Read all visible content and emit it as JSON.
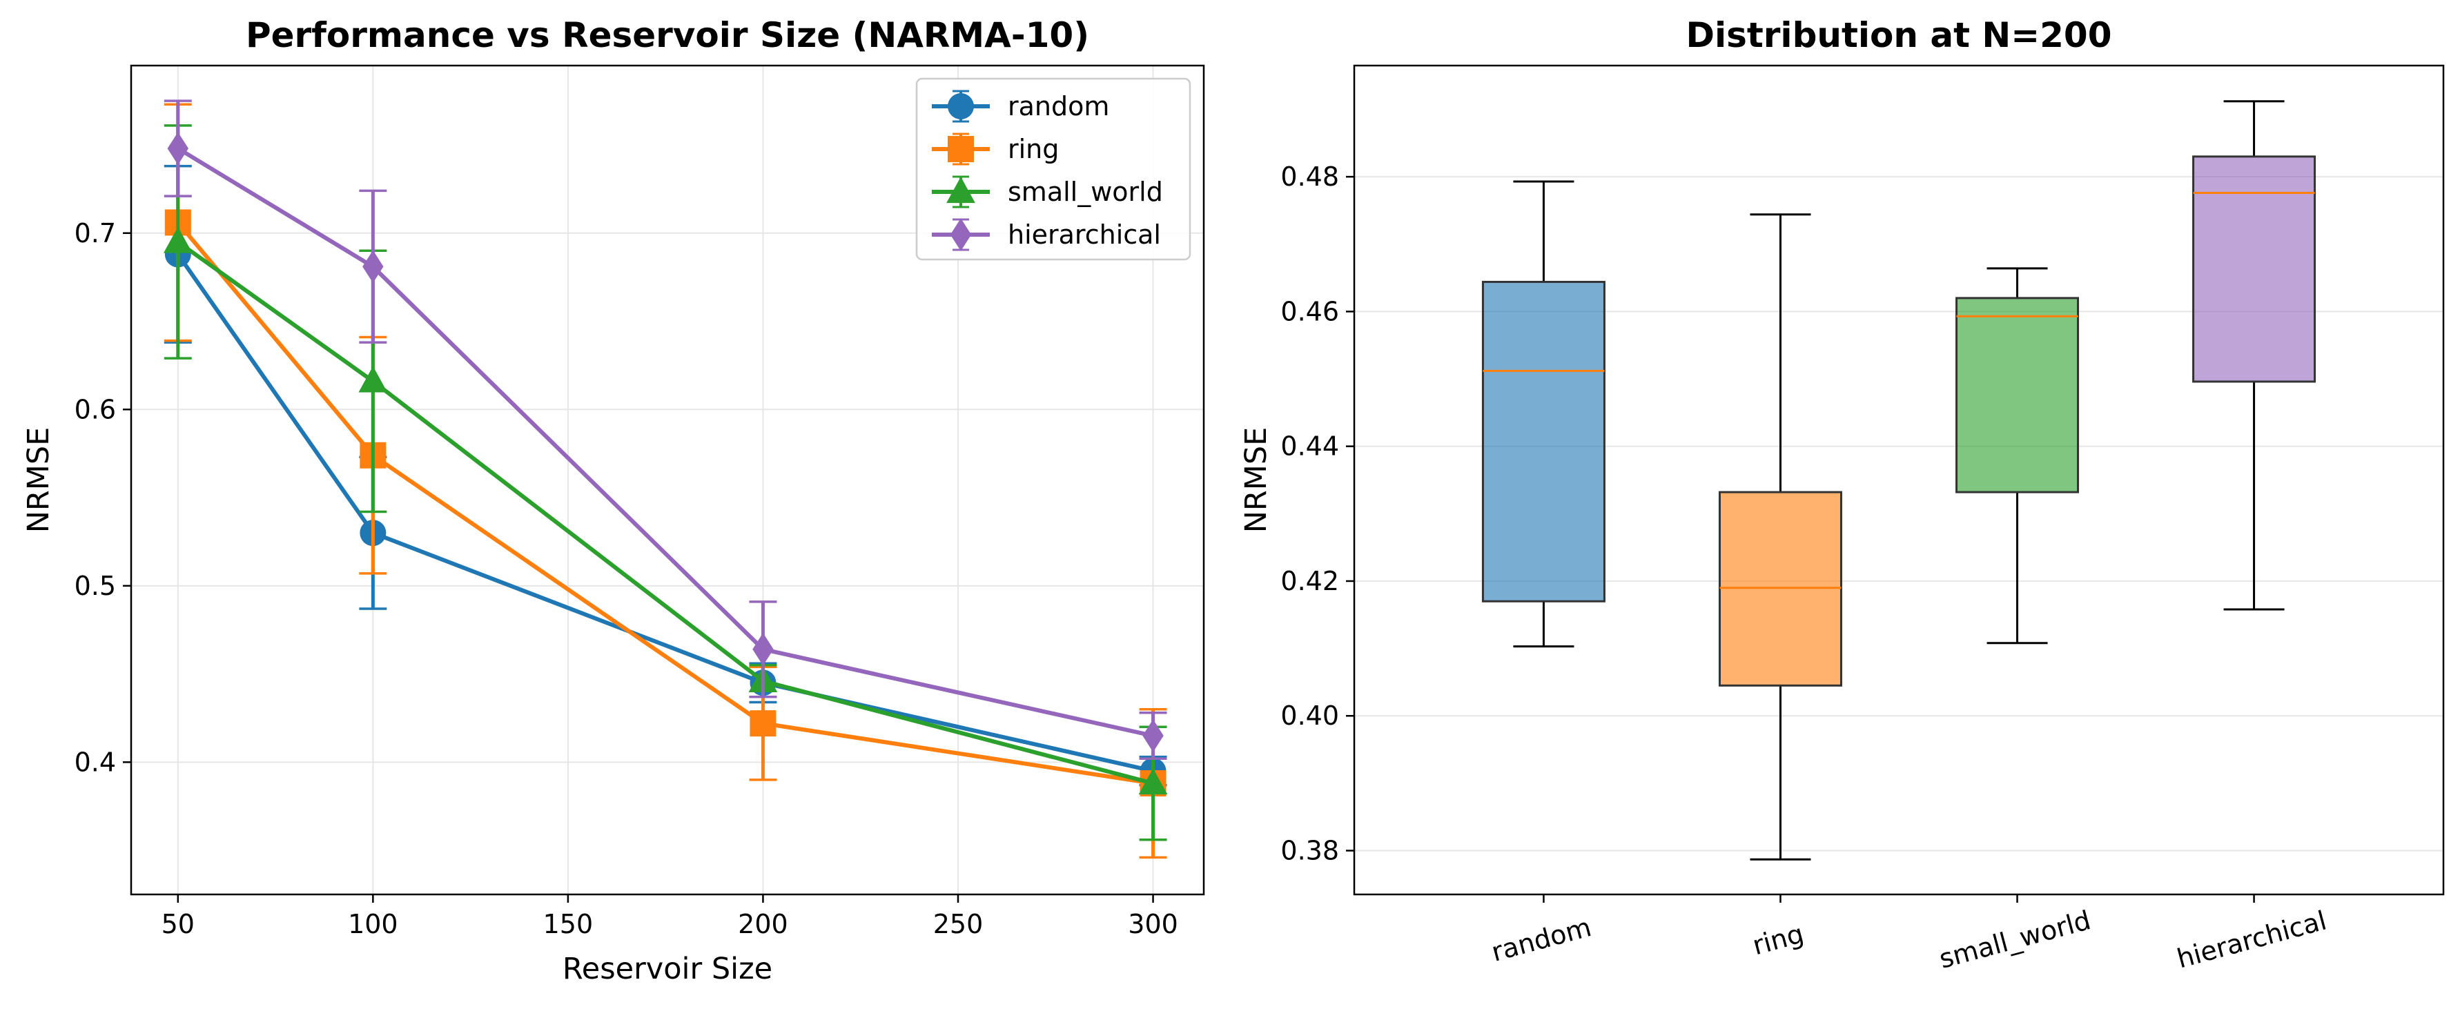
{
  "chart_data": [
    {
      "type": "line",
      "title": "Performance vs Reservoir Size (NARMA-10)",
      "xlabel": "Reservoir Size",
      "ylabel": "NRMSE",
      "x": [
        50,
        100,
        200,
        300
      ],
      "xlim": [
        38,
        313
      ],
      "ylim": [
        0.325,
        0.795
      ],
      "xticks": [
        50,
        100,
        150,
        200,
        250,
        300
      ],
      "yticks": [
        0.4,
        0.5,
        0.6,
        0.7
      ],
      "ytick_labels": [
        "0.4",
        "0.5",
        "0.6",
        "0.7"
      ],
      "grid": true,
      "legend": "top-right",
      "series": [
        {
          "name": "random",
          "color": "#1f77b4",
          "marker": "circle",
          "values": [
            0.688,
            0.53,
            0.445,
            0.395
          ],
          "errors": [
            0.05,
            0.043,
            0.011,
            0.008
          ]
        },
        {
          "name": "ring",
          "color": "#ff7f0e",
          "marker": "square",
          "values": [
            0.706,
            0.574,
            0.422,
            0.388
          ],
          "errors": [
            0.067,
            0.067,
            0.032,
            0.042
          ]
        },
        {
          "name": "small_world",
          "color": "#2ca02c",
          "marker": "triangle",
          "values": [
            0.695,
            0.616,
            0.446,
            0.388
          ],
          "errors": [
            0.066,
            0.074,
            0.009,
            0.032
          ]
        },
        {
          "name": "hierarchical",
          "color": "#9467bd",
          "marker": "diamond",
          "values": [
            0.748,
            0.681,
            0.464,
            0.415
          ],
          "errors": [
            0.027,
            0.043,
            0.027,
            0.013
          ]
        }
      ]
    },
    {
      "type": "box",
      "title": "Distribution at N=200",
      "xlabel": "",
      "ylabel": "NRMSE",
      "categories": [
        "random",
        "ring",
        "small_world",
        "hierarchical"
      ],
      "ylim": [
        0.3735,
        0.4965
      ],
      "yticks": [
        0.38,
        0.4,
        0.42,
        0.44,
        0.46,
        0.48
      ],
      "ytick_labels": [
        "0.38",
        "0.40",
        "0.42",
        "0.44",
        "0.46",
        "0.48"
      ],
      "grid": true,
      "boxes": [
        {
          "name": "random",
          "color": "#1f77b4",
          "min": 0.4103,
          "q1": 0.417,
          "median": 0.4512,
          "q3": 0.4644,
          "max": 0.4793
        },
        {
          "name": "ring",
          "color": "#ff7f0e",
          "min": 0.3787,
          "q1": 0.4045,
          "median": 0.419,
          "q3": 0.4332,
          "max": 0.4744
        },
        {
          "name": "small_world",
          "color": "#2ca02c",
          "min": 0.4108,
          "q1": 0.4332,
          "median": 0.4593,
          "q3": 0.462,
          "max": 0.4664
        },
        {
          "name": "hierarchical",
          "color": "#9467bd",
          "min": 0.4158,
          "q1": 0.4496,
          "median": 0.4776,
          "q3": 0.483,
          "max": 0.4912
        }
      ],
      "median_color": "#ff7f0e"
    }
  ]
}
